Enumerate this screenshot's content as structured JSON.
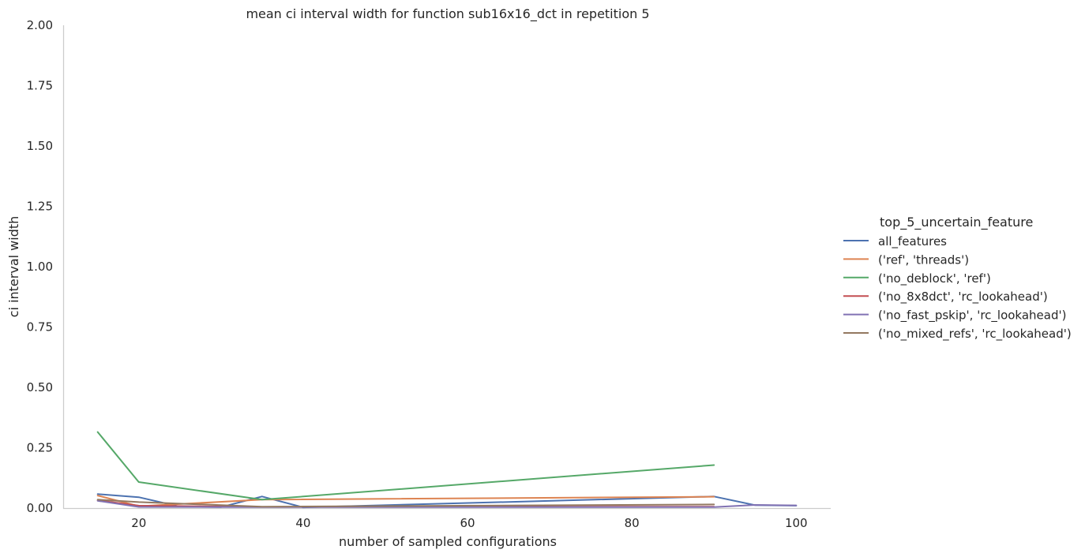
{
  "chart_data": {
    "type": "line",
    "title": "mean ci interval width for function sub16x16_dct in repetition 5",
    "xlabel": "number of sampled configurations",
    "ylabel": "ci interval width",
    "xlim": [
      10.8,
      104.2
    ],
    "ylim": [
      0,
      2.0
    ],
    "xticks": [
      20,
      40,
      60,
      80,
      100
    ],
    "xtick_labels": [
      "20",
      "40",
      "60",
      "80",
      "100"
    ],
    "yticks": [
      0,
      0.25,
      0.5,
      0.75,
      1.0,
      1.25,
      1.5,
      1.75,
      2.0
    ],
    "ytick_labels": [
      "0.00",
      "0.25",
      "0.50",
      "0.75",
      "1.00",
      "1.25",
      "1.50",
      "1.75",
      "2.00"
    ],
    "grid": false,
    "legend": {
      "title": "top_5_uncertain_feature",
      "placement": "right"
    },
    "series": [
      {
        "name": "all_features",
        "color": "#4c72b0",
        "x": [
          15,
          20,
          25,
          30,
          35,
          40,
          90,
          95,
          100
        ],
        "y": [
          0.058,
          0.045,
          0.006,
          0.004,
          0.048,
          0.003,
          0.048,
          0.012,
          0.01
        ]
      },
      {
        "name": "('ref', 'threads')",
        "color": "#dd8452",
        "x": [
          15,
          20,
          35,
          90
        ],
        "y": [
          0.052,
          0.008,
          0.035,
          0.047
        ]
      },
      {
        "name": "('no_deblock', 'ref')",
        "color": "#55a868",
        "x": [
          15,
          20,
          35,
          90
        ],
        "y": [
          0.315,
          0.108,
          0.035,
          0.178
        ]
      },
      {
        "name": "('no_8x8dct', 'rc_lookahead')",
        "color": "#c44e52",
        "x": [
          15,
          20,
          35,
          90
        ],
        "y": [
          0.032,
          0.01,
          0.005,
          0.006
        ]
      },
      {
        "name": "('no_fast_pskip', 'rc_lookahead')",
        "color": "#8172b3",
        "x": [
          15,
          20,
          35,
          90,
          95,
          100
        ],
        "y": [
          0.03,
          0.005,
          0.004,
          0.004,
          0.013,
          0.011
        ]
      },
      {
        "name": "('no_mixed_refs', 'rc_lookahead')",
        "color": "#937860",
        "x": [
          15,
          20,
          35,
          90
        ],
        "y": [
          0.035,
          0.025,
          0.006,
          0.015
        ]
      }
    ]
  }
}
